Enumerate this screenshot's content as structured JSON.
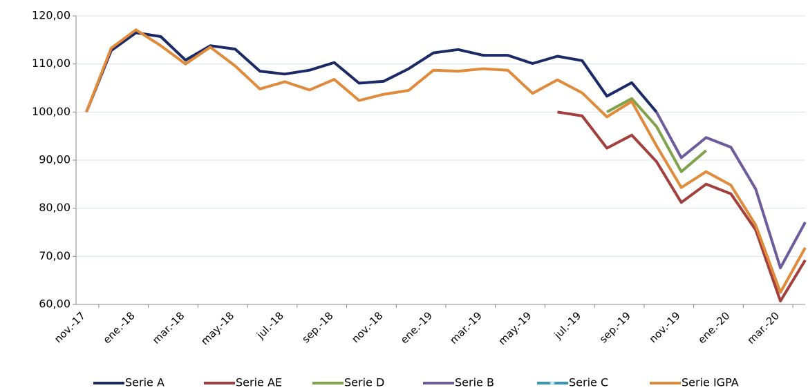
{
  "chart_data": {
    "type": "line",
    "categories": [
      "nov.-17",
      null,
      "ene.-18",
      null,
      "mar.-18",
      null,
      "may.-18",
      null,
      "jul.-18",
      null,
      "sep.-18",
      null,
      "nov.-18",
      null,
      "ene.-19",
      null,
      "mar.-19",
      null,
      "may.-19",
      null,
      "jul.-19",
      null,
      "sep.-19",
      null,
      "nov.-19",
      null,
      "ene.-20",
      null,
      "mar.-20",
      null
    ],
    "series": [
      {
        "name": "Serie A",
        "color": "#1b2a66",
        "values": [
          100,
          112.8,
          116.5,
          115.7,
          110.8,
          113.8,
          113.1,
          108.5,
          107.9,
          108.7,
          110.3,
          106,
          106.4,
          109,
          112.3,
          113,
          111.8,
          111.8,
          110.1,
          111.6,
          110.7,
          103.3,
          106.1,
          100,
          null,
          null,
          null,
          null,
          null,
          null
        ]
      },
      {
        "name": "Serie AE",
        "color": "#a33f3c",
        "values": [
          null,
          null,
          null,
          null,
          null,
          null,
          null,
          null,
          null,
          null,
          null,
          null,
          null,
          null,
          null,
          null,
          null,
          null,
          null,
          100,
          99.2,
          92.5,
          95.2,
          89.7,
          81.2,
          85,
          83,
          75.5,
          60.7,
          69.2
        ]
      },
      {
        "name": "Serie D",
        "color": "#7fa34a",
        "values": [
          null,
          null,
          null,
          null,
          null,
          null,
          null,
          null,
          null,
          null,
          null,
          null,
          null,
          null,
          null,
          null,
          null,
          null,
          null,
          null,
          null,
          100,
          102.8,
          97,
          87.6,
          92,
          null,
          null,
          null,
          null
        ]
      },
      {
        "name": "Serie B",
        "color": "#6d5b9b",
        "values": [
          null,
          null,
          null,
          null,
          null,
          null,
          null,
          null,
          null,
          null,
          null,
          null,
          null,
          null,
          null,
          null,
          null,
          null,
          null,
          null,
          null,
          null,
          null,
          100,
          90.5,
          94.7,
          92.7,
          84,
          67.6,
          77.1
        ]
      },
      {
        "name": "Serie C",
        "color": "#3a97b2",
        "values": [
          null,
          null,
          null,
          null,
          null,
          null,
          null,
          null,
          null,
          null,
          null,
          null,
          null,
          null,
          null,
          null,
          null,
          null,
          null,
          null,
          null,
          null,
          null,
          null,
          null,
          null,
          null,
          null,
          null,
          null
        ]
      },
      {
        "name": "Serie IGPA",
        "color": "#e08b3b",
        "values": [
          100,
          113.3,
          117.1,
          113.8,
          110,
          113.5,
          109.6,
          104.8,
          106.3,
          104.6,
          106.8,
          102.4,
          103.7,
          104.5,
          108.7,
          108.5,
          109,
          108.7,
          103.9,
          106.7,
          104,
          99,
          102.2,
          93,
          84.3,
          87.6,
          84.8,
          76.5,
          62.5,
          71.8
        ]
      }
    ],
    "ylim": [
      60,
      120
    ],
    "yticks": [
      {
        "value": 60,
        "label": "60,00"
      },
      {
        "value": 70,
        "label": "70,00"
      },
      {
        "value": 80,
        "label": "80,00"
      },
      {
        "value": 90,
        "label": "90,00"
      },
      {
        "value": 100,
        "label": "100,00"
      },
      {
        "value": 110,
        "label": "110,00"
      },
      {
        "value": 120,
        "label": "120,00"
      }
    ],
    "grid": true,
    "legend": "bottom"
  }
}
